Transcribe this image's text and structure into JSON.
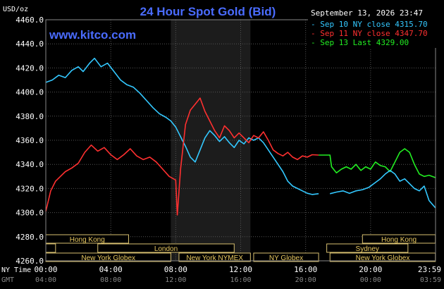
{
  "chart_data": {
    "type": "line",
    "title": "24 Hour Spot Gold (Bid)",
    "watermark": "www.kitco.com",
    "timestamp": "September 13, 2026 23:47",
    "ylabel": "USD/oz",
    "ylim": [
      4260,
      4460
    ],
    "yticks": [
      "4460.0",
      "4440.0",
      "4420.0",
      "4400.0",
      "4380.0",
      "4360.0",
      "4340.0",
      "4320.0",
      "4300.0",
      "4280.0",
      "4260.0"
    ],
    "xlim": [
      0,
      24
    ],
    "xaxis_rows": [
      {
        "label": "NY Time",
        "ticks": [
          "00:00",
          "04:00",
          "08:00",
          "12:00",
          "16:00",
          "20:00",
          "23:59"
        ]
      },
      {
        "label": "GMT",
        "ticks": [
          "04:00",
          "08:00",
          "12:00",
          "16:00",
          "20:00",
          "00:00",
          "03:59"
        ]
      }
    ],
    "shaded_range": [
      7.7,
      12.6
    ],
    "legend": {
      "placement": "top-right",
      "entries": [
        {
          "text": "- Sep 10 NY close 4315.70",
          "color": "#33c8ff"
        },
        {
          "text": "- Sep 11 NY close 4347.70",
          "color": "#ff3030"
        },
        {
          "text": "- Sep 13 Last 4329.00",
          "color": "#22ee22"
        }
      ]
    },
    "sessions": [
      [
        {
          "label": "Hong Kong",
          "start": 0,
          "end": 5.1
        },
        {
          "label": "Hong Kong",
          "start": 19.5,
          "end": 23.99
        }
      ],
      [
        {
          "label": "",
          "start": 0,
          "end": 0.6
        },
        {
          "label": "London",
          "start": 3.2,
          "end": 11.6
        },
        {
          "label": "Sydney",
          "start": 17.3,
          "end": 22.3
        }
      ],
      [
        {
          "label": "New York Globex",
          "start": 0,
          "end": 7.7
        },
        {
          "label": "New York NYMEX",
          "start": 8.2,
          "end": 12.6
        },
        {
          "label": "NY Globex",
          "start": 12.8,
          "end": 16.8
        },
        {
          "label": "New York Globex",
          "start": 17.5,
          "end": 23.99
        }
      ]
    ],
    "series": [
      {
        "color": "#33c8ff",
        "points": [
          [
            0,
            4408
          ],
          [
            0.4,
            4410
          ],
          [
            0.8,
            4414
          ],
          [
            1.2,
            4412
          ],
          [
            1.6,
            4418
          ],
          [
            2.0,
            4421
          ],
          [
            2.3,
            4417
          ],
          [
            2.7,
            4424
          ],
          [
            3.0,
            4428
          ],
          [
            3.4,
            4421
          ],
          [
            3.8,
            4424
          ],
          [
            4.2,
            4417
          ],
          [
            4.6,
            4410
          ],
          [
            5.0,
            4406
          ],
          [
            5.4,
            4404
          ],
          [
            5.8,
            4399
          ],
          [
            6.2,
            4393
          ],
          [
            6.6,
            4387
          ],
          [
            7.0,
            4382
          ],
          [
            7.4,
            4379
          ],
          [
            7.7,
            4376
          ],
          [
            8.0,
            4371
          ],
          [
            8.3,
            4363
          ],
          [
            8.6,
            4355
          ],
          [
            8.9,
            4346
          ],
          [
            9.2,
            4342
          ],
          [
            9.5,
            4352
          ],
          [
            9.8,
            4362
          ],
          [
            10.1,
            4368
          ],
          [
            10.4,
            4364
          ],
          [
            10.7,
            4359
          ],
          [
            11.0,
            4363
          ],
          [
            11.3,
            4358
          ],
          [
            11.6,
            4354
          ],
          [
            11.9,
            4360
          ],
          [
            12.2,
            4357
          ],
          [
            12.5,
            4362
          ],
          [
            12.8,
            4360
          ],
          [
            13.1,
            4362
          ],
          [
            13.4,
            4358
          ],
          [
            13.7,
            4352
          ],
          [
            14.0,
            4346
          ],
          [
            14.3,
            4340
          ],
          [
            14.6,
            4334
          ],
          [
            14.9,
            4326
          ],
          [
            15.2,
            4322
          ],
          [
            15.5,
            4320
          ],
          [
            15.8,
            4318
          ],
          [
            16.1,
            4316
          ],
          [
            16.4,
            4315
          ],
          [
            16.8,
            4315.7
          ]
        ]
      },
      {
        "color": "#ff3030",
        "points": [
          [
            0,
            4301
          ],
          [
            0.3,
            4318
          ],
          [
            0.6,
            4326
          ],
          [
            0.9,
            4330
          ],
          [
            1.2,
            4334
          ],
          [
            1.6,
            4337
          ],
          [
            2.0,
            4341
          ],
          [
            2.4,
            4350
          ],
          [
            2.8,
            4356
          ],
          [
            3.2,
            4351
          ],
          [
            3.6,
            4354
          ],
          [
            4.0,
            4348
          ],
          [
            4.4,
            4344
          ],
          [
            4.8,
            4348
          ],
          [
            5.2,
            4353
          ],
          [
            5.6,
            4347
          ],
          [
            6.0,
            4344
          ],
          [
            6.4,
            4346
          ],
          [
            6.8,
            4342
          ],
          [
            7.2,
            4336
          ],
          [
            7.6,
            4330
          ],
          [
            8.0,
            4327
          ],
          [
            8.1,
            4298
          ],
          [
            8.3,
            4336
          ],
          [
            8.6,
            4373
          ],
          [
            8.9,
            4385
          ],
          [
            9.2,
            4390
          ],
          [
            9.5,
            4395
          ],
          [
            9.8,
            4384
          ],
          [
            10.1,
            4376
          ],
          [
            10.4,
            4368
          ],
          [
            10.7,
            4362
          ],
          [
            11.0,
            4372
          ],
          [
            11.3,
            4368
          ],
          [
            11.6,
            4362
          ],
          [
            11.9,
            4366
          ],
          [
            12.2,
            4362
          ],
          [
            12.5,
            4358
          ],
          [
            12.8,
            4364
          ],
          [
            13.1,
            4362
          ],
          [
            13.4,
            4367
          ],
          [
            13.7,
            4360
          ],
          [
            14.0,
            4352
          ],
          [
            14.3,
            4349
          ],
          [
            14.6,
            4347
          ],
          [
            14.9,
            4350
          ],
          [
            15.2,
            4346
          ],
          [
            15.5,
            4344
          ],
          [
            15.8,
            4347
          ],
          [
            16.1,
            4346
          ],
          [
            16.4,
            4348
          ],
          [
            16.8,
            4347.7
          ]
        ]
      },
      {
        "color": "#22ee22",
        "points": [
          [
            16.8,
            4347.7
          ],
          [
            17.5,
            4347.7
          ],
          [
            17.6,
            4338
          ],
          [
            17.9,
            4333
          ],
          [
            18.2,
            4336
          ],
          [
            18.5,
            4338
          ],
          [
            18.8,
            4336
          ],
          [
            19.1,
            4340
          ],
          [
            19.4,
            4335
          ],
          [
            19.7,
            4338
          ],
          [
            20.0,
            4336
          ],
          [
            20.3,
            4342
          ],
          [
            20.6,
            4339
          ],
          [
            20.9,
            4338
          ],
          [
            21.2,
            4334
          ],
          [
            21.5,
            4342
          ],
          [
            21.8,
            4350
          ],
          [
            22.1,
            4353
          ],
          [
            22.4,
            4350
          ],
          [
            22.7,
            4340
          ],
          [
            23.0,
            4332
          ],
          [
            23.3,
            4330
          ],
          [
            23.6,
            4331
          ],
          [
            23.99,
            4329
          ]
        ]
      },
      {
        "color": "#33c8ff",
        "points": [
          [
            17.5,
            4315.7
          ],
          [
            17.9,
            4317
          ],
          [
            18.3,
            4318
          ],
          [
            18.7,
            4316
          ],
          [
            19.1,
            4318
          ],
          [
            19.5,
            4319
          ],
          [
            19.9,
            4321
          ],
          [
            20.3,
            4325
          ],
          [
            20.6,
            4328
          ],
          [
            20.9,
            4332
          ],
          [
            21.2,
            4335
          ],
          [
            21.5,
            4332
          ],
          [
            21.8,
            4326
          ],
          [
            22.1,
            4328
          ],
          [
            22.4,
            4324
          ],
          [
            22.7,
            4320
          ],
          [
            23.0,
            4318
          ],
          [
            23.3,
            4322
          ],
          [
            23.6,
            4310
          ],
          [
            23.99,
            4304
          ]
        ]
      }
    ]
  }
}
